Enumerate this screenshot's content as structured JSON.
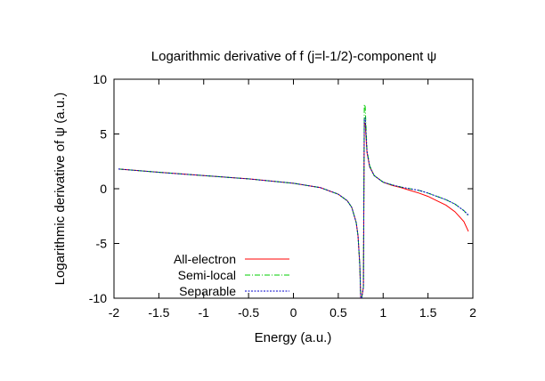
{
  "chart_data": {
    "type": "line",
    "title": "Logarithmic derivative of f (j=l-1/2)-component ψ",
    "xlabel": "Energy (a.u.)",
    "ylabel": "Logarithmic derivative of ψ (a.u.)",
    "xlim": [
      -2,
      2
    ],
    "ylim": [
      -10,
      10
    ],
    "xticks": [
      -2,
      -1.5,
      -1,
      -0.5,
      0,
      0.5,
      1,
      1.5,
      2
    ],
    "xtick_labels": [
      "-2",
      "-1.5",
      "-1",
      "-0.5",
      "0",
      "0.5",
      "1",
      "1.5",
      "2"
    ],
    "yticks": [
      -10,
      -5,
      0,
      5,
      10
    ],
    "ytick_labels": [
      "-10",
      "-5",
      "0",
      "5",
      "10"
    ],
    "grid": false,
    "legend_position": "bottom-left",
    "series": [
      {
        "name": "All-electron",
        "color": "#ff0000",
        "dash": "solid",
        "x": [
          -1.95,
          -1.5,
          -1.0,
          -0.5,
          0.0,
          0.3,
          0.5,
          0.6,
          0.65,
          0.7,
          0.72,
          0.74,
          0.75,
          0.76,
          0.78,
          0.79,
          0.8,
          0.82,
          0.85,
          0.9,
          1.0,
          1.1,
          1.2,
          1.3,
          1.4,
          1.5,
          1.6,
          1.7,
          1.8,
          1.9,
          1.95
        ],
        "y": [
          1.8,
          1.5,
          1.2,
          0.9,
          0.5,
          0.1,
          -0.5,
          -1.1,
          -1.7,
          -3.1,
          -4.3,
          -7.0,
          -10.0,
          -10.0,
          -9.0,
          6.0,
          6.0,
          3.3,
          2.0,
          1.2,
          0.6,
          0.3,
          0.1,
          -0.15,
          -0.4,
          -0.7,
          -1.1,
          -1.5,
          -2.1,
          -3.0,
          -3.9
        ]
      },
      {
        "name": "Semi-local",
        "color": "#00cc00",
        "dash": "dashdot",
        "x": [
          -1.95,
          -1.5,
          -1.0,
          -0.5,
          0.0,
          0.3,
          0.5,
          0.6,
          0.65,
          0.7,
          0.72,
          0.74,
          0.75,
          0.76,
          0.78,
          0.79,
          0.8,
          0.82,
          0.85,
          0.9,
          1.0,
          1.1,
          1.2,
          1.3,
          1.4,
          1.5,
          1.6,
          1.7,
          1.8,
          1.9,
          1.95
        ],
        "y": [
          1.8,
          1.5,
          1.2,
          0.9,
          0.5,
          0.1,
          -0.5,
          -1.1,
          -1.7,
          -3.1,
          -4.3,
          -7.0,
          -10.0,
          -10.0,
          -9.0,
          7.7,
          7.5,
          3.5,
          2.1,
          1.2,
          0.6,
          0.35,
          0.15,
          0.0,
          -0.15,
          -0.4,
          -0.7,
          -1.0,
          -1.4,
          -2.0,
          -2.5
        ]
      },
      {
        "name": "Separable",
        "color": "#0000cc",
        "dash": "dotted",
        "x": [
          -1.95,
          -1.5,
          -1.0,
          -0.5,
          0.0,
          0.3,
          0.5,
          0.6,
          0.65,
          0.7,
          0.72,
          0.74,
          0.75,
          0.76,
          0.78,
          0.79,
          0.8,
          0.82,
          0.85,
          0.9,
          1.0,
          1.1,
          1.2,
          1.3,
          1.4,
          1.5,
          1.6,
          1.7,
          1.8,
          1.9,
          1.95
        ],
        "y": [
          1.8,
          1.5,
          1.2,
          0.9,
          0.5,
          0.1,
          -0.5,
          -1.1,
          -1.7,
          -3.1,
          -4.3,
          -7.0,
          -10.0,
          -10.0,
          -9.0,
          6.3,
          6.5,
          3.4,
          2.0,
          1.2,
          0.6,
          0.35,
          0.15,
          0.0,
          -0.15,
          -0.4,
          -0.7,
          -1.0,
          -1.4,
          -2.0,
          -2.4
        ]
      }
    ]
  }
}
